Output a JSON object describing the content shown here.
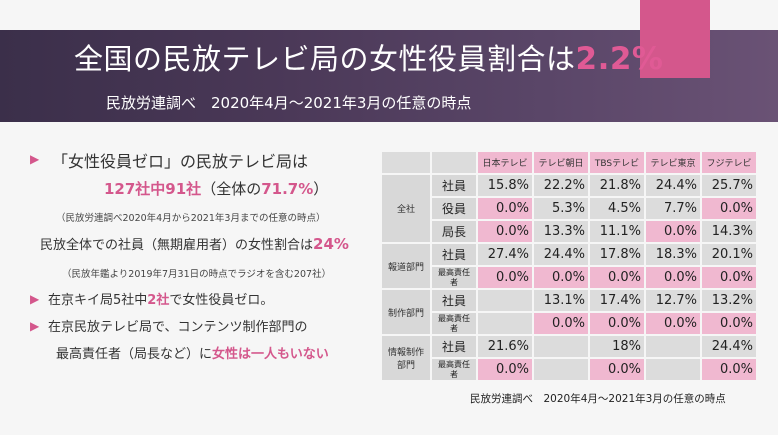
{
  "title": {
    "main": "全国の民放テレビ局の女性役員割合は",
    "highlight": "2.2%"
  },
  "subtitle": "民放労連調べ　2020年4月～2021年3月の任意の時点",
  "bullet1": {
    "line1": "「女性役員ゼロ」の民放テレビ局は",
    "line2_a": "127社中91社",
    "line2_b": "（全体の",
    "line2_c": "71.7%",
    "line2_d": "）",
    "note1": "（民放労連調べ2020年4月から2021年3月までの任意の時点）",
    "line3_a": "民放全体での社員（無期雇用者）の女性割合は",
    "line3_b": "24%",
    "note2": "（民放年鑑より2019年7月31日の時点でラジオを含む207社）"
  },
  "bullet2": {
    "a": "在京キイ局5社中",
    "b": "2社",
    "c": "で女性役員ゼロ。"
  },
  "bullet3": {
    "line1": "在京民放テレビ局で、コンテンツ制作部門の",
    "line2_a": "最高責任者（局長など）に",
    "line2_b": "女性は一人もいない"
  },
  "table": {
    "headers": [
      "日本テレビ",
      "テレビ朝日",
      "TBSテレビ",
      "テレビ東京",
      "フジテレビ"
    ],
    "sections": [
      {
        "name": "全社",
        "rows": [
          {
            "label": "社員",
            "values": [
              "15.8%",
              "22.2%",
              "21.8%",
              "24.4%",
              "25.7%"
            ]
          },
          {
            "label": "役員",
            "values": [
              "0.0%",
              "5.3%",
              "4.5%",
              "7.7%",
              "0.0%"
            ]
          },
          {
            "label": "局長",
            "values": [
              "0.0%",
              "13.3%",
              "11.1%",
              "0.0%",
              "14.3%"
            ]
          }
        ]
      },
      {
        "name": "報道部門",
        "rows": [
          {
            "label": "社員",
            "values": [
              "27.4%",
              "24.4%",
              "17.8%",
              "18.3%",
              "20.1%"
            ]
          },
          {
            "label": "最高責任者",
            "values": [
              "0.0%",
              "0.0%",
              "0.0%",
              "0.0%",
              "0.0%"
            ]
          }
        ]
      },
      {
        "name": "制作部門",
        "rows": [
          {
            "label": "社員",
            "values": [
              "",
              "13.1%",
              "17.4%",
              "12.7%",
              "13.2%"
            ]
          },
          {
            "label": "最高責任者",
            "values": [
              "",
              "0.0%",
              "0.0%",
              "0.0%",
              "0.0%"
            ]
          }
        ]
      },
      {
        "name": "情報制作部門",
        "rows": [
          {
            "label": "社員",
            "values": [
              "21.6%",
              "",
              "18%",
              "",
              "24.4%"
            ]
          },
          {
            "label": "最高責任者",
            "values": [
              "0.0%",
              "",
              "0.0%",
              "",
              "0.0%"
            ]
          }
        ]
      }
    ],
    "source": "民放労連調べ　2020年4月～2021年3月の任意の時点",
    "colors": {
      "pink": "#f0b8d0",
      "gray": "#dcdcdc",
      "accent": "#d4578c"
    }
  }
}
